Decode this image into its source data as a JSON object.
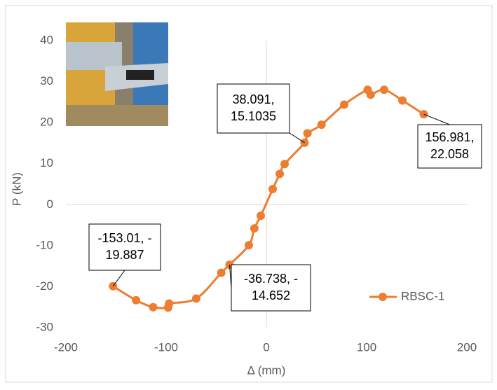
{
  "chart_data": {
    "type": "scatter",
    "smooth": true,
    "x_label": "Δ (mm)",
    "y_label": "P (kN)",
    "xlim": [
      -200,
      200
    ],
    "xticks": [
      -200,
      -100,
      0,
      100,
      200
    ],
    "ylim": [
      -30,
      40
    ],
    "yticks": [
      -30,
      -20,
      -10,
      0,
      10,
      20,
      30,
      40
    ],
    "legend": "right",
    "series": [
      {
        "name": "RBSC-1",
        "color": "#ed7d31",
        "x": [
          -153.01,
          -130,
          -113,
          -98,
          -97,
          -70,
          -45,
          -36.738,
          -17.5,
          -12,
          -5.6,
          6.3,
          13.3,
          18.2,
          38.091,
          41,
          55,
          77.6,
          101,
          104,
          117.5,
          135.7,
          156.981
        ],
        "values": [
          -19.887,
          -23.3,
          -25,
          -25.1,
          -24.1,
          -22.9,
          -16.6,
          -14.652,
          -9.9,
          -5.8,
          -2.7,
          3.8,
          7.5,
          9.9,
          15.1035,
          17.4,
          19.5,
          24.4,
          28,
          26.8,
          28,
          25.4,
          22.058
        ],
        "value_labels": [
          [
            "-153.01, -",
            "19.887"
          ],
          null,
          null,
          null,
          null,
          null,
          null,
          [
            "-36.738, -",
            "14.652"
          ],
          null,
          null,
          null,
          null,
          null,
          null,
          [
            "38.091,",
            "15.1035"
          ],
          null,
          null,
          null,
          null,
          null,
          null,
          null,
          [
            "156.981,",
            "22.058"
          ]
        ]
      }
    ]
  }
}
